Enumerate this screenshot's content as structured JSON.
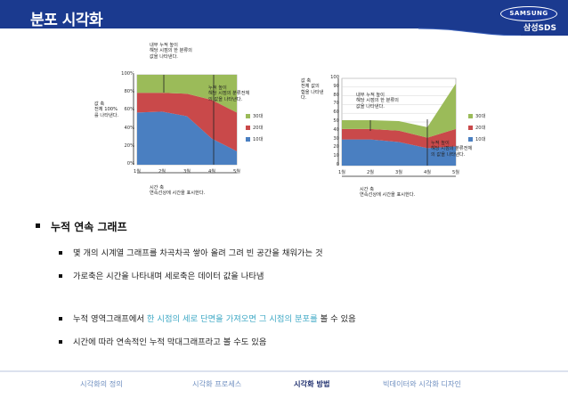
{
  "header": {
    "title": "분포 시각화",
    "logo_text": "SAMSUNG",
    "logo_sub": "삼성SDS"
  },
  "chart_data": [
    {
      "type": "area",
      "stacked": true,
      "normalized": true,
      "categories": [
        "1월",
        "2월",
        "3월",
        "4월",
        "5월"
      ],
      "y_ticks": [
        "0%",
        "20%",
        "40%",
        "60%",
        "80%",
        "100%"
      ],
      "series": [
        {
          "name": "10대",
          "values": [
            58,
            59,
            54,
            29,
            15
          ],
          "color": "#4a7fc1"
        },
        {
          "name": "20대",
          "values": [
            22,
            21,
            25,
            43,
            43
          ],
          "color": "#c9494a"
        },
        {
          "name": "30대",
          "values": [
            20,
            20,
            21,
            28,
            42
          ],
          "color": "#9bbb59"
        }
      ],
      "legend": [
        "30대",
        "20대",
        "10대"
      ],
      "annotations": {
        "top": "내부 누적 높이\n해당 시점의 한 분류의\n값을 나타낸다.",
        "left": "값 축\n전체 100%\n를 나타낸다.",
        "right": "누적 높이\n해당 시점의 분류전체\n의 값을 나타낸다.",
        "bottom": "시간 축\n연속선상에 시간을 표시한다."
      }
    },
    {
      "type": "area",
      "stacked": true,
      "categories": [
        "1월",
        "2월",
        "3월",
        "4월",
        "5월"
      ],
      "y_ticks": [
        "0",
        "10",
        "20",
        "30",
        "40",
        "50",
        "60",
        "70",
        "80",
        "90",
        "100"
      ],
      "ylim": [
        0,
        100
      ],
      "series": [
        {
          "name": "10대",
          "values": [
            30,
            30,
            27,
            20,
            22
          ],
          "color": "#4a7fc1"
        },
        {
          "name": "20대",
          "values": [
            12,
            12,
            13,
            12,
            20
          ],
          "color": "#c9494a"
        },
        {
          "name": "30대",
          "values": [
            10,
            10,
            11,
            12,
            52
          ],
          "color": "#9bbb59"
        }
      ],
      "legend": [
        "30대",
        "20대",
        "10대"
      ],
      "annotations": {
        "top": "내부 누적 높이\n해당 시점의 한 분류의\n값을 나타낸다.",
        "left": "값 축\n전체 값의\n합을 나타낸\n다.",
        "right": "누적 높이\n해당 시점의 분류전체\n의 값을 나타낸다.",
        "bottom": "시간 축\n연속선상에 시간을 표시한다."
      }
    }
  ],
  "content": {
    "heading": "누적 연속 그래프",
    "items": [
      {
        "text": "몇 개의 시계열 그래프를 차곡차곡 쌓아 올려 그려 빈 공간을 채워가는 것"
      },
      {
        "text": "가로축은 시간을 나타내며 세로축은 데이터 값을 나타냄"
      },
      {
        "pre": "누적 영역그래프에서 ",
        "hl": "한 시점의 세로 단면을 가져오면 그 시점의 분포를",
        "post": " 볼 수 있음"
      },
      {
        "text": "시간에 따라 연속적인 누적 막대그래프라고 볼 수도 있음"
      }
    ]
  },
  "footer": {
    "tabs": [
      "시각화의 정의",
      "시각화 프로세스",
      "시각화 방법",
      "빅데이터와 시각화 디자인"
    ],
    "active": "시각화 방법"
  }
}
